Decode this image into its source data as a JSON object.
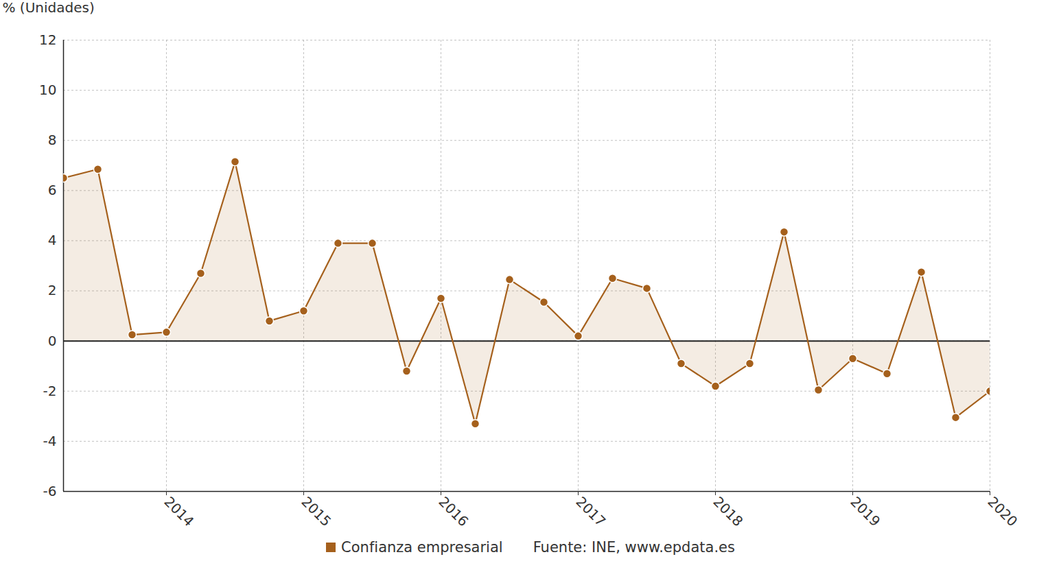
{
  "chart_data": {
    "type": "line",
    "y_label": "% (Unidades)",
    "caption": "Fuente: INE, www.epdata.es",
    "x": [
      2013.25,
      2013.5,
      2013.75,
      2014,
      2014.25,
      2014.5,
      2014.75,
      2015,
      2015.25,
      2015.5,
      2015.75,
      2016,
      2016.25,
      2016.5,
      2016.75,
      2017,
      2017.25,
      2017.5,
      2017.75,
      2018,
      2018.25,
      2018.5,
      2018.75,
      2019,
      2019.25,
      2019.5,
      2019.75,
      2020
    ],
    "series": [
      {
        "name": "Confianza empresarial",
        "color": "#a5601c",
        "marker": "circle",
        "values": [
          6.5,
          6.85,
          0.25,
          0.35,
          2.7,
          7.15,
          0.8,
          1.2,
          3.9,
          3.9,
          -1.2,
          1.7,
          -3.3,
          2.45,
          1.55,
          0.2,
          2.5,
          2.1,
          -0.9,
          -1.8,
          -0.9,
          4.35,
          -1.95,
          -0.7,
          -1.3,
          2.75,
          -3.05,
          -2.0
        ]
      }
    ],
    "xlim": [
      2013.25,
      2020
    ],
    "xticks": [
      2014,
      2015,
      2016,
      2017,
      2018,
      2019,
      2020
    ],
    "ylim": [
      -6,
      12
    ],
    "yticks": [
      -6,
      -4,
      -2,
      0,
      2,
      4,
      6,
      8,
      10,
      12
    ],
    "grid": true,
    "legend": "bottom"
  }
}
